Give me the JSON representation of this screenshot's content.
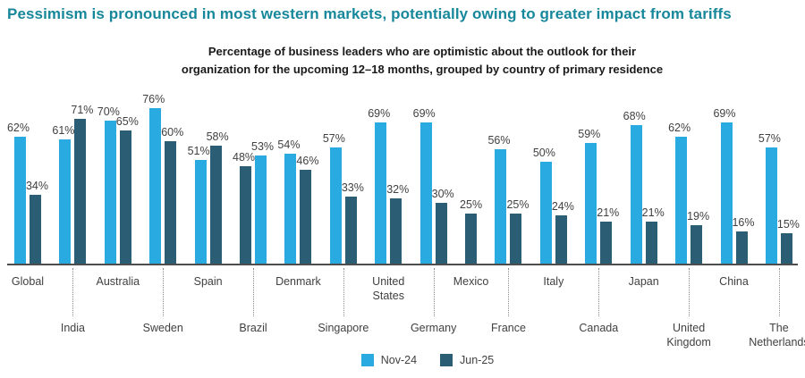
{
  "title": "Pessimism is pronounced in most western markets, potentially owing to greater impact from tariffs",
  "subtitle": "Percentage of business leaders who are optimistic about the outlook for their\norganization for the upcoming 12–18 months, grouped by country of primary residence",
  "colors": {
    "title_teal": "#17879b",
    "nov24_blue": "#29abe2",
    "jun25_teal": "#2b5d74",
    "axis_gray": "#4d4d4d",
    "label_gray": "#414042"
  },
  "legend": [
    {
      "label": "Nov-24",
      "color": "#29abe2"
    },
    {
      "label": "Jun-25",
      "color": "#2b5d74"
    }
  ],
  "chart_data": {
    "type": "bar",
    "title": "Percentage of business leaders who are optimistic about the outlook for their organization for the upcoming 12–18 months, grouped by country of primary residence",
    "unit": "%",
    "ylim": [
      0,
      100
    ],
    "grid": false,
    "legend_position": "bottom",
    "series_names": [
      "Nov-24",
      "Jun-25"
    ],
    "countries": [
      {
        "name": "Global",
        "label_row": 1,
        "bars": [
          {
            "series": "Nov-24",
            "value": 62
          },
          {
            "series": "Jun-25",
            "value": 34
          }
        ]
      },
      {
        "name": "India",
        "label_row": 2,
        "bars": [
          {
            "series": "Nov-24",
            "value": 61
          },
          {
            "series": "Jun-25",
            "value": 71
          }
        ]
      },
      {
        "name": "Australia",
        "label_row": 1,
        "bars": [
          {
            "series": "Nov-24",
            "value": 70
          },
          {
            "series": "Jun-25",
            "value": 65
          }
        ]
      },
      {
        "name": "Sweden",
        "label_row": 2,
        "bars": [
          {
            "series": "Nov-24",
            "value": 76
          },
          {
            "series": "Jun-25",
            "value": 60
          }
        ]
      },
      {
        "name": "Spain",
        "label_row": 1,
        "bars": [
          {
            "series": "Nov-24",
            "value": 51
          },
          {
            "series": "Jun-25",
            "value": 58
          }
        ]
      },
      {
        "name": "Brazil",
        "label_row": 2,
        "bars": [
          {
            "series": "Jun-25",
            "value": 48
          },
          {
            "series": "Nov-24",
            "value": 53
          }
        ]
      },
      {
        "name": "Denmark",
        "label_row": 1,
        "bars": [
          {
            "series": "Nov-24",
            "value": 54
          },
          {
            "series": "Jun-25",
            "value": 46
          }
        ]
      },
      {
        "name": "Singapore",
        "label_row": 2,
        "bars": [
          {
            "series": "Nov-24",
            "value": 57
          },
          {
            "series": "Jun-25",
            "value": 33
          }
        ]
      },
      {
        "name": "United\nStates",
        "label_row": 1,
        "bars": [
          {
            "series": "Nov-24",
            "value": 69
          },
          {
            "series": "Jun-25",
            "value": 32
          }
        ]
      },
      {
        "name": "Germany",
        "label_row": 2,
        "bars": [
          {
            "series": "Nov-24",
            "value": 69
          },
          {
            "series": "Jun-25",
            "value": 30
          }
        ]
      },
      {
        "name": "Mexico",
        "label_row": 1,
        "bars": [
          {
            "series": "Jun-25",
            "value": 25
          }
        ]
      },
      {
        "name": "France",
        "label_row": 2,
        "bars": [
          {
            "series": "Nov-24",
            "value": 56
          },
          {
            "series": "Jun-25",
            "value": 25
          }
        ]
      },
      {
        "name": "Italy",
        "label_row": 1,
        "bars": [
          {
            "series": "Nov-24",
            "value": 50
          },
          {
            "series": "Jun-25",
            "value": 24
          }
        ]
      },
      {
        "name": "Canada",
        "label_row": 2,
        "bars": [
          {
            "series": "Nov-24",
            "value": 59
          },
          {
            "series": "Jun-25",
            "value": 21
          }
        ]
      },
      {
        "name": "Japan",
        "label_row": 1,
        "bars": [
          {
            "series": "Nov-24",
            "value": 68
          },
          {
            "series": "Jun-25",
            "value": 21
          }
        ]
      },
      {
        "name": "United\nKingdom",
        "label_row": 2,
        "bars": [
          {
            "series": "Nov-24",
            "value": 62
          },
          {
            "series": "Jun-25",
            "value": 19
          }
        ]
      },
      {
        "name": "China",
        "label_row": 1,
        "bars": [
          {
            "series": "Nov-24",
            "value": 69
          },
          {
            "series": "Jun-25",
            "value": 16
          }
        ]
      },
      {
        "name": "The\nNetherlands",
        "label_row": 2,
        "bars": [
          {
            "series": "Nov-24",
            "value": 57
          },
          {
            "series": "Jun-25",
            "value": 15
          }
        ]
      }
    ]
  }
}
